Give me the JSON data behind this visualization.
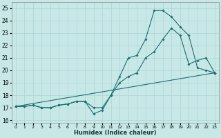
{
  "xlabel": "Humidex (Indice chaleur)",
  "xlim": [
    -0.5,
    23.5
  ],
  "ylim": [
    15.8,
    25.5
  ],
  "yticks": [
    16,
    17,
    18,
    19,
    20,
    21,
    22,
    23,
    24,
    25
  ],
  "xticks": [
    0,
    1,
    2,
    3,
    4,
    5,
    6,
    7,
    8,
    9,
    10,
    11,
    12,
    13,
    14,
    15,
    16,
    17,
    18,
    19,
    20,
    21,
    22,
    23
  ],
  "bg_color": "#c8e8e8",
  "grid_color": "#b0d8d8",
  "line_color": "#1a6e6e",
  "line1_x": [
    0,
    1,
    2,
    3,
    4,
    5,
    6,
    7,
    8,
    9,
    10,
    11,
    12,
    13,
    14,
    15,
    16,
    17,
    18,
    19,
    20,
    21,
    22,
    23
  ],
  "line1_y": [
    17.1,
    17.1,
    17.2,
    17.0,
    17.0,
    17.2,
    17.3,
    17.5,
    17.5,
    16.5,
    16.8,
    18.0,
    19.5,
    21.0,
    21.2,
    22.5,
    24.8,
    24.8,
    24.3,
    23.5,
    22.8,
    20.2,
    20.0,
    19.8
  ],
  "line2_x": [
    0,
    1,
    2,
    3,
    4,
    5,
    6,
    7,
    8,
    9,
    10,
    11,
    12,
    13,
    14,
    15,
    16,
    17,
    18,
    19,
    20,
    21,
    22,
    23
  ],
  "line2_y": [
    17.1,
    17.1,
    17.2,
    17.0,
    17.0,
    17.2,
    17.3,
    17.5,
    17.5,
    17.0,
    17.0,
    18.0,
    19.0,
    19.5,
    19.8,
    21.0,
    21.5,
    22.5,
    23.4,
    22.8,
    20.5,
    20.8,
    21.0,
    19.8
  ],
  "line3_x": [
    0,
    23
  ],
  "line3_y": [
    17.1,
    19.8
  ]
}
